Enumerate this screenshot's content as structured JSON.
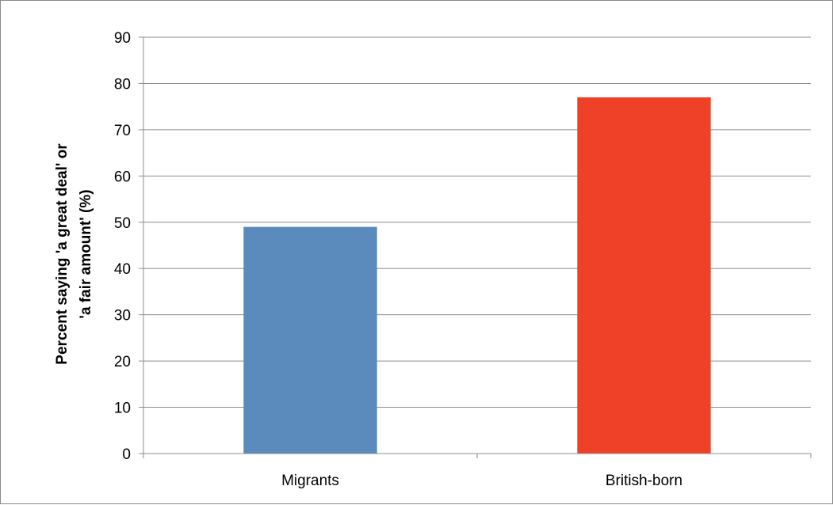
{
  "chart_data": {
    "type": "bar",
    "title": "",
    "xlabel": "",
    "ylabel_lines": [
      "Percent saying 'a great deal' or",
      "'a fair amount'  (%)"
    ],
    "categories": [
      "Migrants",
      "British-born"
    ],
    "values": [
      49,
      77
    ],
    "ylim": [
      0,
      90
    ],
    "yticks": [
      "0",
      "10",
      "20",
      "30",
      "40",
      "50",
      "60",
      "70",
      "80",
      "90"
    ],
    "grid": true,
    "legend": "none",
    "colors": [
      "#5b8bbc",
      "#ee4128"
    ]
  }
}
